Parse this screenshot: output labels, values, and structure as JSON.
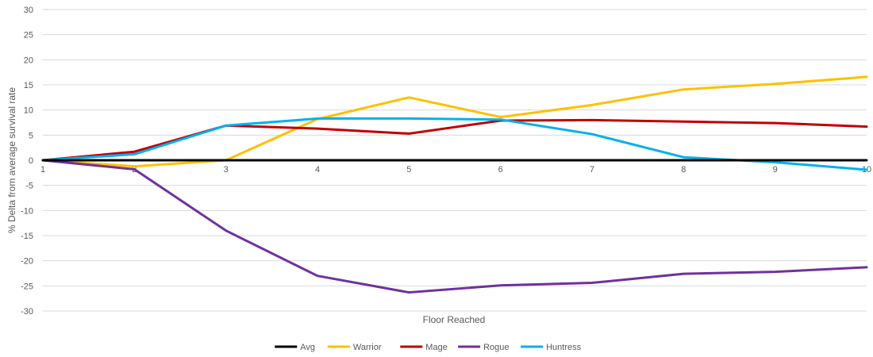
{
  "chart_data": {
    "type": "line",
    "title": "",
    "xlabel": "Floor Reached",
    "ylabel": "% Delta from average survival rate",
    "x": [
      1,
      2,
      3,
      4,
      5,
      6,
      7,
      8,
      9,
      10
    ],
    "xlim": [
      1,
      10
    ],
    "ylim": [
      -30,
      30
    ],
    "yticks": [
      30,
      25,
      20,
      15,
      10,
      5,
      0,
      -5,
      -10,
      -15,
      -20,
      -25,
      -30
    ],
    "grid": true,
    "legend_position": "bottom",
    "series": [
      {
        "name": "Avg",
        "color": "#000000",
        "values": [
          0,
          0,
          0,
          0,
          0,
          0,
          0,
          0,
          0,
          0
        ]
      },
      {
        "name": "Warrior",
        "color": "#FFC000",
        "values": [
          0,
          -1.2,
          0,
          8.2,
          12.5,
          8.6,
          11,
          14.1,
          15.2,
          16.6
        ]
      },
      {
        "name": "Mage",
        "color": "#C00000",
        "values": [
          0,
          1.7,
          6.9,
          6.3,
          5.3,
          7.9,
          8.0,
          7.7,
          7.4,
          6.7
        ]
      },
      {
        "name": "Rogue",
        "color": "#7030A0",
        "values": [
          0,
          -1.8,
          -14,
          -23,
          -26.3,
          -24.9,
          -24.4,
          -22.6,
          -22.2,
          -21.3
        ]
      },
      {
        "name": "Huntress",
        "color": "#00B0F0",
        "values": [
          0,
          1.2,
          6.9,
          8.3,
          8.3,
          8.1,
          5.2,
          0.6,
          -0.4,
          -1.9
        ]
      }
    ]
  }
}
